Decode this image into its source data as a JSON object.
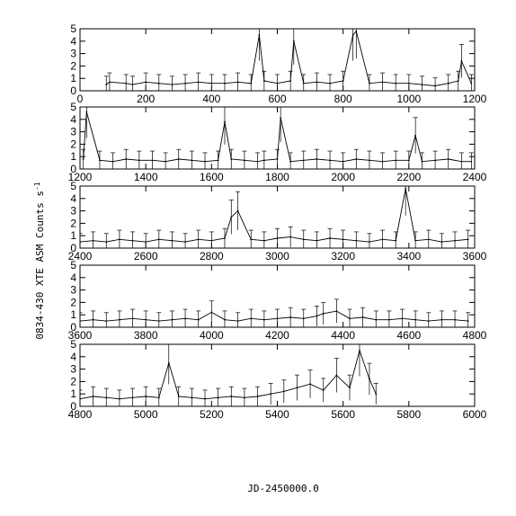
{
  "chart_data": {
    "type": "line",
    "xlabel": "JD-2450000.0",
    "ylabel": "0834-430 XTE ASM Counts s",
    "ylabel_superscript": "-1",
    "series_color": "#000000",
    "panels": [
      {
        "xlim": [
          0,
          1200
        ],
        "ylim": [
          0,
          5
        ],
        "xticks": [
          "0",
          "200",
          "400",
          "600",
          "800",
          "1000",
          "1200"
        ],
        "yticks": [
          "0",
          "1",
          "2",
          "3",
          "4",
          "5"
        ],
        "x": [
          80,
          90,
          140,
          160,
          200,
          240,
          280,
          320,
          360,
          400,
          440,
          480,
          520,
          545,
          560,
          600,
          640,
          650,
          680,
          720,
          760,
          800,
          830,
          840,
          880,
          920,
          960,
          1000,
          1040,
          1080,
          1120,
          1150,
          1160,
          1190
        ],
        "y": [
          0.5,
          0.7,
          0.6,
          0.5,
          0.7,
          0.6,
          0.5,
          0.6,
          0.7,
          0.6,
          0.6,
          0.7,
          0.6,
          4.5,
          0.8,
          0.6,
          0.8,
          4.0,
          0.6,
          0.7,
          0.6,
          0.8,
          4.5,
          4.8,
          0.6,
          0.7,
          0.6,
          0.6,
          0.5,
          0.4,
          0.6,
          0.8,
          2.4,
          0.6
        ]
      },
      {
        "xlim": [
          1200,
          2400
        ],
        "ylim": [
          0,
          5
        ],
        "xticks": [
          "1200",
          "1400",
          "1600",
          "1800",
          "2000",
          "2200",
          "2400"
        ],
        "yticks": [
          "0",
          "1",
          "2",
          "3",
          "4",
          "5"
        ],
        "x": [
          1210,
          1220,
          1260,
          1300,
          1340,
          1380,
          1420,
          1460,
          1500,
          1540,
          1580,
          1620,
          1640,
          1660,
          1700,
          1740,
          1760,
          1800,
          1810,
          1840,
          1880,
          1920,
          1960,
          2000,
          2040,
          2080,
          2120,
          2160,
          2200,
          2220,
          2240,
          2280,
          2320,
          2360,
          2390
        ],
        "y": [
          0.8,
          4.6,
          0.7,
          0.6,
          0.8,
          0.7,
          0.7,
          0.6,
          0.8,
          0.7,
          0.6,
          0.7,
          3.8,
          0.8,
          0.7,
          0.6,
          0.7,
          0.8,
          4.1,
          0.6,
          0.7,
          0.8,
          0.7,
          0.6,
          0.8,
          0.7,
          0.6,
          0.7,
          0.7,
          2.7,
          0.6,
          0.7,
          0.8,
          0.6,
          0.6
        ]
      },
      {
        "xlim": [
          2400,
          3600
        ],
        "ylim": [
          0,
          5
        ],
        "xticks": [
          "2400",
          "2600",
          "2800",
          "3000",
          "3200",
          "3400",
          "3600"
        ],
        "yticks": [
          "0",
          "1",
          "2",
          "3",
          "4",
          "5"
        ],
        "x": [
          2400,
          2440,
          2480,
          2520,
          2560,
          2600,
          2640,
          2680,
          2720,
          2760,
          2800,
          2840,
          2860,
          2880,
          2920,
          2960,
          3000,
          3040,
          3080,
          3120,
          3160,
          3200,
          3240,
          3280,
          3320,
          3360,
          3390,
          3420,
          3460,
          3500,
          3540,
          3580
        ],
        "y": [
          0.5,
          0.6,
          0.5,
          0.7,
          0.6,
          0.5,
          0.7,
          0.6,
          0.5,
          0.7,
          0.6,
          0.8,
          2.5,
          3.0,
          0.7,
          0.6,
          0.8,
          0.9,
          0.7,
          0.6,
          0.8,
          0.7,
          0.6,
          0.5,
          0.7,
          0.6,
          4.8,
          0.6,
          0.7,
          0.5,
          0.6,
          0.7
        ]
      },
      {
        "xlim": [
          3600,
          4800
        ],
        "ylim": [
          0,
          5
        ],
        "xticks": [
          "3600",
          "3800",
          "4000",
          "4200",
          "4400",
          "4600",
          "4800"
        ],
        "yticks": [
          "0",
          "1",
          "2",
          "3",
          "4",
          "5"
        ],
        "x": [
          3600,
          3640,
          3680,
          3720,
          3760,
          3800,
          3840,
          3880,
          3920,
          3960,
          4000,
          4040,
          4080,
          4120,
          4160,
          4200,
          4240,
          4280,
          4320,
          4340,
          4380,
          4420,
          4460,
          4500,
          4540,
          4580,
          4620,
          4660,
          4700,
          4740,
          4780
        ],
        "y": [
          0.5,
          0.6,
          0.5,
          0.6,
          0.7,
          0.6,
          0.5,
          0.6,
          0.7,
          0.6,
          1.2,
          0.6,
          0.5,
          0.7,
          0.6,
          0.7,
          0.8,
          0.7,
          0.9,
          1.1,
          1.3,
          0.7,
          0.8,
          0.6,
          0.6,
          0.7,
          0.6,
          0.5,
          0.6,
          0.6,
          0.5
        ]
      },
      {
        "xlim": [
          4800,
          6000
        ],
        "ylim": [
          0,
          5
        ],
        "xticks": [
          "4800",
          "5000",
          "5200",
          "5400",
          "5600",
          "5800",
          "6000"
        ],
        "yticks": [
          "0",
          "1",
          "2",
          "3",
          "4",
          "5"
        ],
        "x": [
          4800,
          4840,
          4880,
          4920,
          4960,
          5000,
          5040,
          5070,
          5100,
          5140,
          5180,
          5220,
          5260,
          5300,
          5340,
          5380,
          5420,
          5460,
          5500,
          5540,
          5580,
          5620,
          5650,
          5680,
          5700
        ],
        "y": [
          0.6,
          0.8,
          0.7,
          0.6,
          0.7,
          0.8,
          0.7,
          3.5,
          0.8,
          0.7,
          0.6,
          0.7,
          0.8,
          0.7,
          0.8,
          1.0,
          1.2,
          1.5,
          1.8,
          1.3,
          2.5,
          1.5,
          4.5,
          2.2,
          1.0
        ]
      }
    ]
  }
}
